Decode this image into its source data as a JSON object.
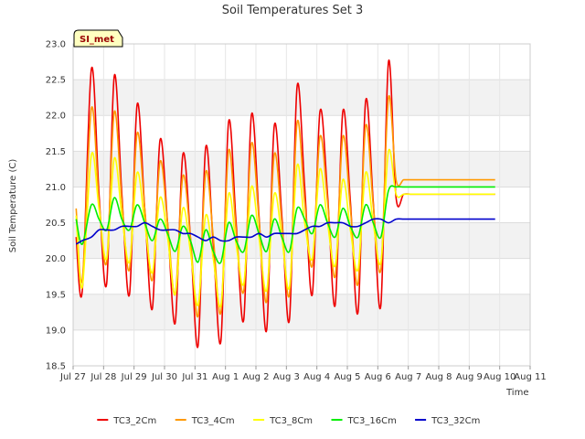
{
  "chart_data": {
    "type": "line",
    "title": "Soil Temperatures Set 3",
    "xlabel": "Time",
    "ylabel": "Soil Temperature (C)",
    "ylim": [
      18.5,
      23.0
    ],
    "xlim": [
      "Jul 27",
      "Aug 11"
    ],
    "x_ticks": [
      "Jul 27",
      "Jul 28",
      "Jul 29",
      "Jul 30",
      "Jul 31",
      "Aug 1",
      "Aug 2",
      "Aug 3",
      "Aug 4",
      "Aug 5",
      "Aug 6",
      "Aug 7",
      "Aug 8",
      "Aug 9",
      "Aug 10",
      "Aug 11"
    ],
    "y_ticks": [
      "18.5",
      "19.0",
      "19.5",
      "20.0",
      "20.5",
      "21.0",
      "21.5",
      "22.0",
      "22.5",
      "23.0"
    ],
    "grid": true,
    "legend_position": "bottom",
    "badge": "SI_met",
    "x_days": [
      0.1,
      0.3,
      0.6,
      0.85,
      1.1,
      1.35,
      1.6,
      1.85,
      2.1,
      2.35,
      2.6,
      2.85,
      3.1,
      3.35,
      3.6,
      3.85,
      4.1,
      4.35,
      4.6,
      4.85,
      5.1,
      5.35,
      5.6,
      5.85,
      6.1,
      6.35,
      6.6,
      6.85,
      7.1,
      7.35,
      7.6,
      7.85,
      8.1,
      8.35,
      8.6,
      8.85,
      9.1,
      9.35,
      9.6,
      9.85,
      10.1,
      10.35,
      10.6,
      10.85,
      11.1,
      11.35,
      11.6,
      11.85,
      12.1,
      12.35,
      12.6,
      12.85,
      13.1,
      13.35,
      13.6,
      13.85,
      14.1,
      14.35
    ],
    "series": [
      {
        "name": "TC3_2Cm",
        "color": "#ee0000",
        "values": [
          20.3,
          19.55,
          22.65,
          20.9,
          19.65,
          22.55,
          20.9,
          19.5,
          22.15,
          20.7,
          19.3,
          21.65,
          20.5,
          19.1,
          21.45,
          20.3,
          18.78,
          21.55,
          20.2,
          18.85,
          21.9,
          20.5,
          19.15,
          22.0,
          20.6,
          19.0,
          21.85,
          20.6,
          19.15,
          22.4,
          21.0,
          19.5,
          22.05,
          20.9,
          19.35,
          22.05,
          20.8,
          19.25,
          22.2,
          20.8,
          19.35,
          22.75,
          20.85,
          20.9,
          20.9,
          20.9,
          20.9,
          20.9,
          20.9,
          20.9,
          20.9,
          20.9,
          20.9,
          20.9,
          20.9,
          20.9,
          20.9,
          20.9
        ]
      },
      {
        "name": "TC3_4Cm",
        "color": "#ff9900",
        "values": [
          20.7,
          19.7,
          22.1,
          20.8,
          19.95,
          22.05,
          20.8,
          19.85,
          21.75,
          20.7,
          19.7,
          21.35,
          20.5,
          19.5,
          21.15,
          20.3,
          19.2,
          21.2,
          20.3,
          19.25,
          21.5,
          20.4,
          19.55,
          21.6,
          20.55,
          19.4,
          21.45,
          20.5,
          19.5,
          21.9,
          20.8,
          19.9,
          21.7,
          20.8,
          19.75,
          21.7,
          20.7,
          19.65,
          21.85,
          20.75,
          19.85,
          22.25,
          21.1,
          21.1,
          21.1,
          21.1,
          21.1,
          21.1,
          21.1,
          21.1,
          21.1,
          21.1,
          21.1,
          21.1,
          21.1,
          21.1,
          21.1,
          21.1
        ]
      },
      {
        "name": "TC3_8Cm",
        "color": "#ffff00",
        "values": [
          20.6,
          19.6,
          21.45,
          20.7,
          20.0,
          21.4,
          20.6,
          19.95,
          21.2,
          20.5,
          19.8,
          20.85,
          20.3,
          19.5,
          20.7,
          20.1,
          19.35,
          20.6,
          20.0,
          19.35,
          20.9,
          20.2,
          19.65,
          21.0,
          20.3,
          19.55,
          20.9,
          20.3,
          19.6,
          21.3,
          20.5,
          20.0,
          21.25,
          20.5,
          19.9,
          21.1,
          20.4,
          19.85,
          21.2,
          20.5,
          19.95,
          21.5,
          20.9,
          20.9,
          20.9,
          20.9,
          20.9,
          20.9,
          20.9,
          20.9,
          20.9,
          20.9,
          20.9,
          20.9,
          20.9,
          20.9,
          20.9,
          20.9
        ]
      },
      {
        "name": "TC3_16Cm",
        "color": "#00ee00",
        "values": [
          20.55,
          20.2,
          20.75,
          20.55,
          20.4,
          20.85,
          20.55,
          20.4,
          20.75,
          20.5,
          20.25,
          20.55,
          20.35,
          20.1,
          20.45,
          20.25,
          19.95,
          20.4,
          20.1,
          19.95,
          20.5,
          20.25,
          20.1,
          20.6,
          20.35,
          20.1,
          20.55,
          20.3,
          20.1,
          20.7,
          20.55,
          20.35,
          20.75,
          20.5,
          20.3,
          20.7,
          20.45,
          20.3,
          20.75,
          20.5,
          20.3,
          20.95,
          21.0,
          21.0,
          21.0,
          21.0,
          21.0,
          21.0,
          21.0,
          21.0,
          21.0,
          21.0,
          21.0,
          21.0,
          21.0,
          21.0,
          21.0,
          21.0
        ]
      },
      {
        "name": "TC3_32Cm",
        "color": "#0000cc",
        "values": [
          20.2,
          20.25,
          20.3,
          20.4,
          20.4,
          20.4,
          20.45,
          20.45,
          20.45,
          20.5,
          20.45,
          20.4,
          20.4,
          20.4,
          20.35,
          20.35,
          20.3,
          20.25,
          20.3,
          20.25,
          20.25,
          20.3,
          20.3,
          20.3,
          20.35,
          20.3,
          20.35,
          20.35,
          20.35,
          20.35,
          20.4,
          20.45,
          20.45,
          20.5,
          20.5,
          20.5,
          20.45,
          20.45,
          20.5,
          20.55,
          20.55,
          20.5,
          20.55,
          20.55,
          20.55,
          20.55,
          20.55,
          20.55,
          20.55,
          20.55,
          20.55,
          20.55,
          20.55,
          20.55,
          20.55,
          20.55,
          20.55,
          20.55
        ]
      }
    ]
  }
}
